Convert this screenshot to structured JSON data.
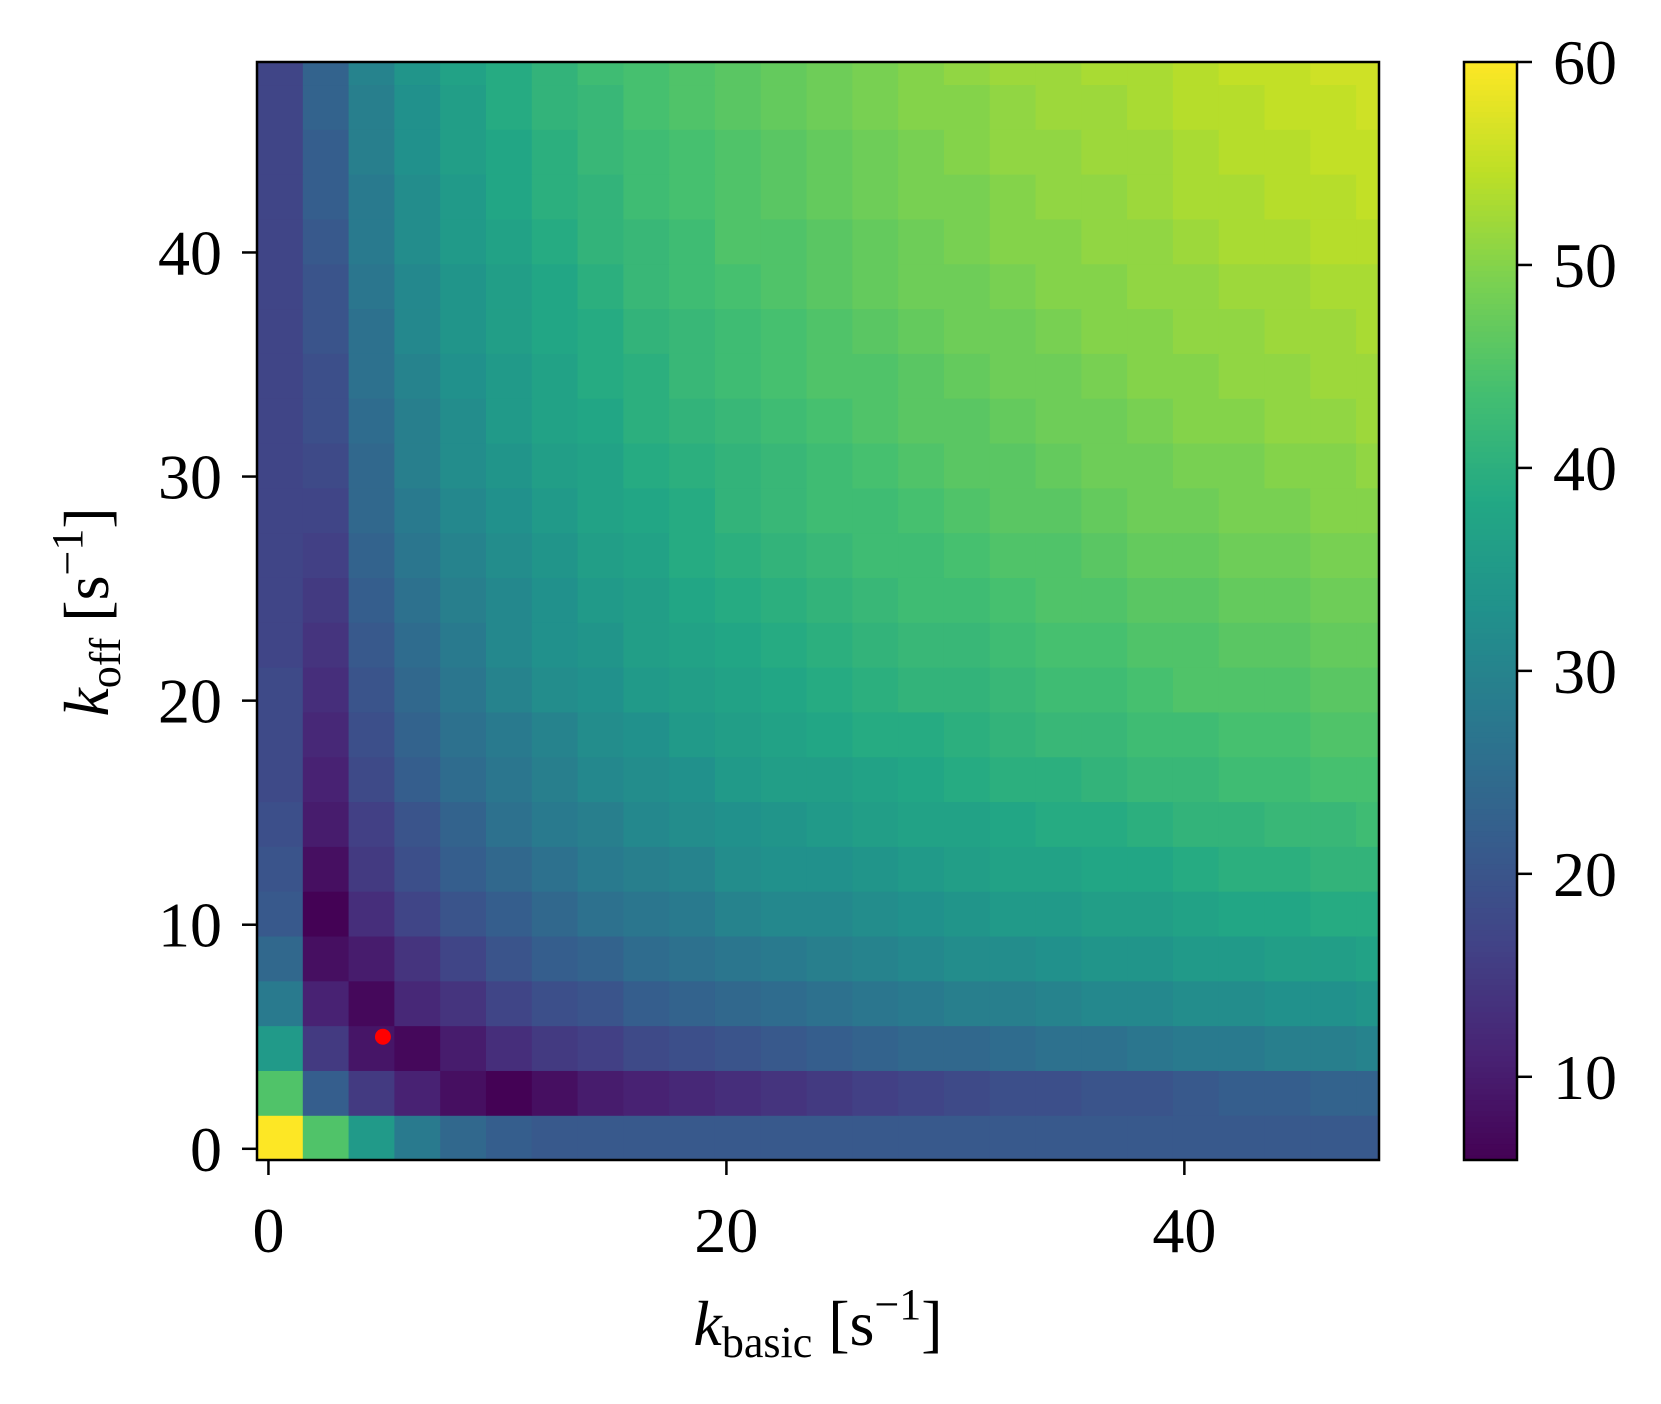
{
  "chart_data": {
    "type": "heatmap",
    "colormap": "viridis",
    "xlabel": {
      "main": "k",
      "sub": "basic",
      "unit": "[s",
      "sup": "−1",
      "close": "]"
    },
    "ylabel": {
      "main": "k",
      "sub": "off",
      "unit": "[s",
      "sup": "−1",
      "close": "]"
    },
    "x": [
      0,
      2,
      4,
      6,
      8,
      10,
      12,
      14,
      16,
      18,
      20,
      22,
      24,
      26,
      28,
      30,
      32,
      34,
      36,
      38,
      40,
      42,
      44,
      46,
      48
    ],
    "y": [
      0,
      2,
      4,
      6,
      8,
      10,
      12,
      14,
      16,
      18,
      20,
      22,
      24,
      26,
      28,
      30,
      32,
      34,
      36,
      38,
      40,
      42,
      44,
      46,
      48
    ],
    "z": [
      [
        60,
        45,
        35,
        28,
        24,
        22,
        21,
        21,
        21,
        21,
        21,
        21,
        21,
        21,
        21,
        21,
        21,
        21,
        21,
        21,
        21,
        21,
        21,
        21,
        21
      ],
      [
        45,
        22,
        15,
        11,
        8,
        6,
        8,
        10,
        11,
        12,
        13,
        14,
        15,
        16,
        17,
        18,
        19,
        19,
        20,
        20,
        21,
        22,
        22,
        23,
        23
      ],
      [
        35,
        15,
        9,
        7,
        10,
        13,
        15,
        16,
        18,
        19,
        20,
        21,
        22,
        23,
        24,
        24,
        25,
        26,
        26,
        27,
        28,
        28,
        29,
        29,
        30
      ],
      [
        28,
        11,
        7,
        12,
        14,
        17,
        19,
        20,
        22,
        23,
        24,
        25,
        26,
        27,
        28,
        29,
        29,
        30,
        31,
        31,
        32,
        32,
        33,
        33,
        34
      ],
      [
        24,
        8,
        10,
        14,
        17,
        20,
        22,
        23,
        25,
        26,
        27,
        28,
        29,
        30,
        31,
        32,
        32,
        33,
        34,
        34,
        35,
        35,
        36,
        36,
        37
      ],
      [
        21,
        6,
        13,
        17,
        20,
        22,
        24,
        26,
        27,
        28,
        30,
        31,
        31,
        32,
        33,
        34,
        35,
        35,
        36,
        36,
        37,
        38,
        38,
        39,
        39
      ],
      [
        20,
        8,
        15,
        19,
        22,
        24,
        26,
        28,
        29,
        30,
        32,
        33,
        33,
        34,
        35,
        36,
        37,
        37,
        38,
        38,
        39,
        40,
        40,
        41,
        41
      ],
      [
        19,
        10,
        16,
        20,
        23,
        26,
        28,
        29,
        31,
        32,
        33,
        34,
        35,
        36,
        37,
        37,
        38,
        39,
        39,
        40,
        41,
        41,
        42,
        42,
        43
      ],
      [
        18,
        11,
        18,
        22,
        25,
        27,
        29,
        31,
        32,
        33,
        35,
        36,
        36,
        37,
        38,
        39,
        40,
        40,
        41,
        42,
        42,
        43,
        43,
        44,
        44
      ],
      [
        18,
        12,
        19,
        23,
        26,
        28,
        30,
        32,
        33,
        35,
        36,
        37,
        38,
        39,
        39,
        40,
        41,
        42,
        42,
        43,
        43,
        44,
        44,
        45,
        45
      ],
      [
        18,
        13,
        20,
        24,
        27,
        30,
        32,
        33,
        35,
        36,
        37,
        38,
        39,
        40,
        41,
        41,
        42,
        43,
        43,
        44,
        45,
        45,
        45,
        46,
        46
      ],
      [
        17,
        14,
        21,
        25,
        28,
        31,
        33,
        34,
        36,
        37,
        38,
        39,
        40,
        41,
        42,
        42,
        43,
        44,
        44,
        45,
        45,
        46,
        46,
        47,
        47
      ],
      [
        17,
        15,
        22,
        26,
        29,
        31,
        33,
        35,
        36,
        38,
        39,
        40,
        41,
        42,
        43,
        43,
        44,
        45,
        45,
        46,
        46,
        47,
        47,
        48,
        48
      ],
      [
        17,
        16,
        23,
        27,
        30,
        32,
        34,
        36,
        37,
        39,
        40,
        41,
        42,
        43,
        43,
        44,
        45,
        45,
        46,
        47,
        47,
        48,
        48,
        49,
        49
      ],
      [
        17,
        17,
        24,
        28,
        31,
        33,
        35,
        37,
        38,
        39,
        41,
        42,
        43,
        43,
        44,
        45,
        46,
        46,
        47,
        48,
        48,
        49,
        49,
        50,
        50
      ],
      [
        17,
        18,
        24,
        29,
        32,
        34,
        36,
        37,
        39,
        40,
        41,
        42,
        43,
        44,
        45,
        46,
        46,
        47,
        48,
        48,
        49,
        49,
        50,
        50,
        51
      ],
      [
        17,
        19,
        25,
        29,
        32,
        35,
        37,
        38,
        40,
        41,
        42,
        43,
        44,
        45,
        46,
        46,
        47,
        48,
        48,
        49,
        50,
        50,
        51,
        51,
        52
      ],
      [
        17,
        19,
        26,
        30,
        33,
        35,
        37,
        39,
        40,
        42,
        43,
        44,
        45,
        45,
        46,
        47,
        48,
        48,
        49,
        50,
        50,
        51,
        51,
        52,
        52
      ],
      [
        17,
        20,
        26,
        31,
        34,
        36,
        38,
        39,
        41,
        42,
        43,
        44,
        45,
        46,
        47,
        48,
        48,
        49,
        50,
        50,
        51,
        51,
        52,
        52,
        53
      ],
      [
        17,
        20,
        27,
        31,
        34,
        36,
        38,
        40,
        42,
        43,
        44,
        45,
        46,
        47,
        48,
        48,
        49,
        50,
        50,
        51,
        51,
        52,
        52,
        53,
        53
      ],
      [
        17,
        21,
        28,
        32,
        35,
        37,
        39,
        41,
        42,
        43,
        45,
        45,
        46,
        47,
        48,
        49,
        50,
        50,
        51,
        51,
        52,
        53,
        53,
        54,
        54
      ],
      [
        17,
        22,
        28,
        32,
        35,
        38,
        40,
        41,
        43,
        44,
        45,
        46,
        47,
        48,
        49,
        49,
        50,
        51,
        51,
        52,
        53,
        53,
        54,
        54,
        55
      ],
      [
        17,
        22,
        29,
        33,
        36,
        38,
        40,
        42,
        43,
        44,
        45,
        46,
        47,
        48,
        49,
        50,
        51,
        51,
        52,
        52,
        53,
        54,
        54,
        55,
        55
      ],
      [
        17,
        23,
        29,
        33,
        36,
        39,
        41,
        42,
        44,
        45,
        46,
        47,
        48,
        49,
        50,
        50,
        51,
        52,
        52,
        53,
        54,
        54,
        55,
        55,
        56
      ],
      [
        17,
        23,
        30,
        34,
        37,
        39,
        41,
        43,
        44,
        45,
        46,
        47,
        48,
        49,
        50,
        51,
        52,
        52,
        53,
        53,
        54,
        55,
        55,
        56,
        56
      ]
    ],
    "xlim": [
      -0.5,
      48.5
    ],
    "ylim": [
      -0.5,
      48.5
    ],
    "xticks": [
      0,
      20,
      40
    ],
    "yticks": [
      0,
      10,
      20,
      30,
      40
    ],
    "clim": [
      5.9,
      60
    ],
    "cticks": [
      10,
      20,
      30,
      40,
      50,
      60
    ],
    "points": [
      {
        "x": 5,
        "y": 5,
        "color": "#ff0000"
      }
    ]
  }
}
